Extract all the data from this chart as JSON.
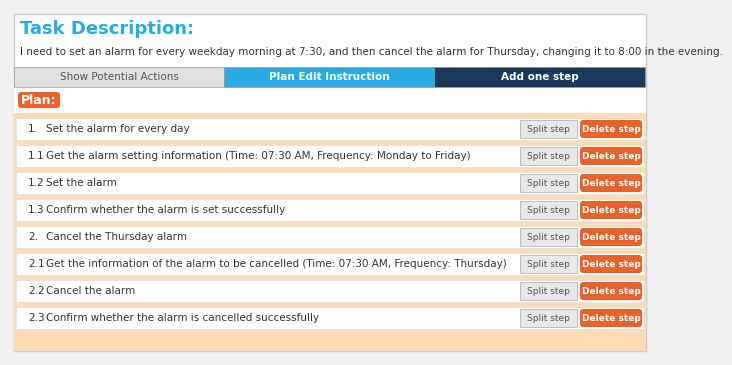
{
  "title": "Task Description:",
  "title_color": "#29ABE2",
  "description": "I need to set an alarm for every weekday morning at 7:30, and then cancel the alarm for Thursday, changing it to 8:00 in the evening.",
  "bg_color": "#f0f0f0",
  "white_bg": "#ffffff",
  "tab_labels": [
    "Show Potential Actions",
    "Plan Edit Instruction",
    "Add one step"
  ],
  "tab_colors": [
    "#e0e0e0",
    "#29ABE2",
    "#1a3a5c"
  ],
  "tab_text_colors": [
    "#555555",
    "#ffffff",
    "#ffffff"
  ],
  "tab_bold": [
    false,
    true,
    true
  ],
  "plan_label": "Plan:",
  "plan_label_bg": "#E8622A",
  "plan_label_color": "#ffffff",
  "steps": [
    {
      "num": "1.",
      "text": "Set the alarm for every day"
    },
    {
      "num": "1.1",
      "text": "Get the alarm setting information (Time: 07:30 AM, Frequency: Monday to Friday)"
    },
    {
      "num": "1.2",
      "text": "Set the alarm"
    },
    {
      "num": "1.3",
      "text": "Confirm whether the alarm is set successfully"
    },
    {
      "num": "2.",
      "text": "Cancel the Thursday alarm"
    },
    {
      "num": "2.1",
      "text": "Get the information of the alarm to be cancelled (Time: 07:30 AM, Frequency: Thursday)"
    },
    {
      "num": "2.2",
      "text": "Cancel the alarm"
    },
    {
      "num": "2.3",
      "text": "Confirm whether the alarm is cancelled successfully"
    }
  ],
  "step_bg_orange": "#FDDCB5",
  "step_row_bg": "#ffffff",
  "split_btn_text": "Split step",
  "split_btn_bg": "#e8e8e8",
  "split_btn_text_color": "#555555",
  "delete_btn_text": "Delete step",
  "delete_btn_bg": "#E8622A",
  "delete_btn_text_color": "#ffffff",
  "border_color": "#cccccc"
}
